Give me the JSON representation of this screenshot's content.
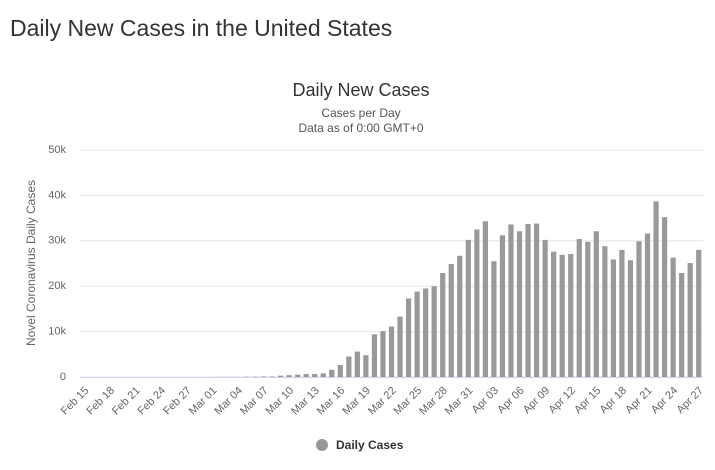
{
  "page_title": "Daily New Cases in the United States",
  "chart_data": {
    "type": "bar",
    "title": "Daily New Cases",
    "subtitle": "Cases per Day",
    "note": "Data as of 0:00 GMT+0",
    "y_label": "Novel Coronavirus Daily Cases",
    "categories": [
      "Feb 15",
      null,
      null,
      "Feb 18",
      null,
      null,
      "Feb 21",
      null,
      null,
      "Feb 24",
      null,
      null,
      "Feb 27",
      null,
      null,
      "Mar 01",
      null,
      null,
      "Mar 04",
      null,
      null,
      "Mar 07",
      null,
      null,
      "Mar 10",
      null,
      null,
      "Mar 13",
      null,
      null,
      "Mar 16",
      null,
      null,
      "Mar 19",
      null,
      null,
      "Mar 22",
      null,
      null,
      "Mar 25",
      null,
      null,
      "Mar 28",
      null,
      null,
      "Mar 31",
      null,
      null,
      "Apr 03",
      null,
      null,
      "Apr 06",
      null,
      null,
      "Apr 09",
      null,
      null,
      "Apr 12",
      null,
      null,
      "Apr 15",
      null,
      null,
      "Apr 18",
      null,
      null,
      "Apr 21",
      null,
      null,
      "Apr 24",
      null,
      null,
      "Apr 27"
    ],
    "series": [
      {
        "name": "Daily Cases",
        "color": "#999999",
        "values": [
          0,
          0,
          0,
          0,
          0,
          0,
          0,
          0,
          0,
          0,
          0,
          0,
          0,
          0,
          0,
          10,
          20,
          24,
          22,
          69,
          75,
          121,
          120,
          292,
          398,
          514,
          654,
          658,
          796,
          1593,
          2648,
          4500,
          5600,
          4800,
          9400,
          10100,
          11100,
          13300,
          17300,
          18800,
          19500,
          20000,
          22900,
          24900,
          26700,
          30200,
          32500,
          34300,
          25500,
          31200,
          33600,
          32100,
          33700,
          33800,
          30200,
          27600,
          26900,
          27100,
          30400,
          29800,
          32100,
          28800,
          25900,
          28000,
          25700,
          29900,
          31600,
          38700,
          35200,
          26300,
          22900,
          25100,
          28000
        ]
      }
    ],
    "ylim": [
      0,
      50000
    ],
    "yticks": [
      0,
      {
        "value": 10000,
        "label": "10k"
      },
      {
        "value": 20000,
        "label": "20k"
      },
      {
        "value": 30000,
        "label": "30k"
      },
      {
        "value": 40000,
        "label": "40k"
      },
      {
        "value": 50000,
        "label": "50k"
      }
    ],
    "grid": true
  }
}
